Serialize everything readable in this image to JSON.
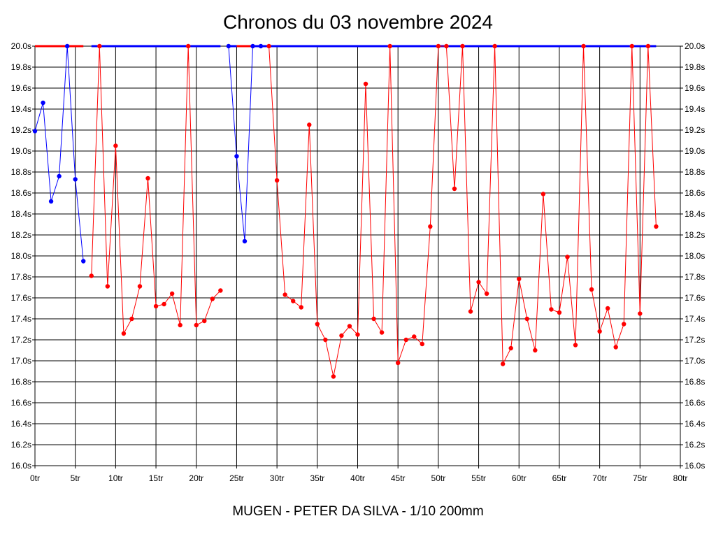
{
  "title": "Chronos du 03 novembre 2024",
  "footer": "MUGEN - PETER DA SILVA - 1/10 200mm",
  "chart_data": {
    "type": "line",
    "title": "Chronos du 03 novembre 2024",
    "xlabel": "",
    "ylabel": "",
    "xlim": [
      0,
      80
    ],
    "ylim": [
      16.0,
      20.0
    ],
    "x_ticks": [
      "0tr",
      "5tr",
      "10tr",
      "15tr",
      "20tr",
      "25tr",
      "30tr",
      "35tr",
      "40tr",
      "45tr",
      "50tr",
      "55tr",
      "60tr",
      "65tr",
      "70tr",
      "75tr",
      "80tr"
    ],
    "y_ticks": [
      "16.0s",
      "16.2s",
      "16.4s",
      "16.6s",
      "16.8s",
      "17.0s",
      "17.2s",
      "17.4s",
      "17.6s",
      "17.8s",
      "18.0s",
      "18.2s",
      "18.4s",
      "18.6s",
      "18.8s",
      "19.0s",
      "19.2s",
      "19.4s",
      "19.6s",
      "19.8s",
      "20.0s"
    ],
    "grid": true,
    "colors": {
      "blue": "#0000ff",
      "red": "#ff0000",
      "grid": "#000000"
    },
    "series": [
      {
        "color": "#0000ff",
        "x": [
          0,
          1,
          2,
          3,
          4,
          5,
          6
        ],
        "y": [
          19.19,
          19.46,
          18.52,
          18.76,
          20.0,
          18.73,
          17.95
        ]
      },
      {
        "color": "#ff0000",
        "x": [
          7,
          8,
          9,
          10,
          11,
          12,
          13,
          14,
          15,
          16,
          17,
          18,
          19,
          20,
          21,
          22,
          23
        ],
        "y": [
          17.81,
          20.0,
          17.71,
          19.05,
          17.26,
          17.4,
          17.71,
          18.74,
          17.52,
          17.54,
          17.64,
          17.34,
          20.0,
          17.34,
          17.38,
          17.59,
          17.67
        ]
      },
      {
        "color": "#0000ff",
        "x": [
          24,
          25,
          26,
          27,
          28
        ],
        "y": [
          20.0,
          18.95,
          18.14,
          20.0,
          20.0
        ]
      },
      {
        "color": "#ff0000",
        "x": [
          29,
          30,
          31,
          32,
          33,
          34,
          35,
          36,
          37,
          38,
          39,
          40,
          41,
          42,
          43,
          44,
          45,
          46,
          47,
          48,
          49,
          50,
          51,
          52,
          53,
          54,
          55,
          56,
          57,
          58,
          59,
          60,
          61,
          62,
          63,
          64,
          65,
          66,
          67,
          68,
          69,
          70,
          71,
          72,
          73,
          74,
          75,
          76,
          77
        ],
        "y": [
          20.0,
          18.72,
          17.63,
          17.57,
          17.51,
          19.25,
          17.35,
          17.2,
          16.85,
          17.24,
          17.33,
          17.25,
          19.64,
          17.4,
          17.27,
          20.0,
          16.98,
          17.2,
          17.23,
          17.16,
          18.28,
          20.0,
          20.0,
          18.64,
          20.0,
          17.47,
          17.75,
          17.64,
          20.0,
          16.97,
          17.12,
          17.78,
          17.4,
          17.1,
          18.59,
          17.49,
          17.46,
          17.99,
          17.15,
          20.0,
          17.68,
          17.28,
          17.5,
          17.13,
          17.35,
          20.0,
          17.45,
          20.0,
          18.28
        ]
      }
    ],
    "top_bars": [
      {
        "color": "#ff0000",
        "x": [
          0,
          6
        ]
      },
      {
        "color": "#0000ff",
        "x": [
          7,
          23
        ]
      },
      {
        "color": "#0000ff",
        "x": [
          24,
          25
        ]
      },
      {
        "color": "#ff0000",
        "x": [
          25,
          27
        ]
      },
      {
        "color": "#0000ff",
        "x": [
          27,
          77
        ]
      }
    ]
  }
}
